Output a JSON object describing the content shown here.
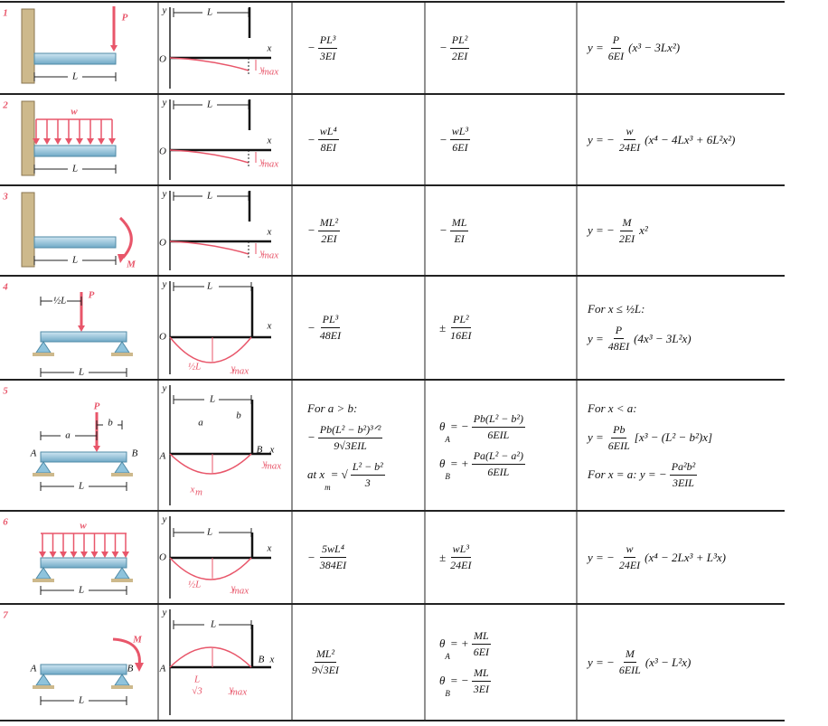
{
  "rows": [
    {
      "number": "1",
      "beam_labels": [
        "P",
        "L"
      ],
      "curve_labels": [
        "y",
        "L",
        "x",
        "O",
        "y",
        "max"
      ],
      "max_deflection": [
        [
          "−",
          {
            "n": "PL³",
            "d": "3EI"
          }
        ]
      ],
      "slope": [
        [
          "−",
          {
            "n": "PL²",
            "d": "2EI"
          }
        ]
      ],
      "elastic_curve": [
        [
          "y = ",
          {
            "n": "P",
            "d": "6EI"
          },
          "(x³ − 3Lx²)"
        ]
      ]
    },
    {
      "number": "2",
      "beam_labels": [
        "w",
        "L"
      ],
      "curve_labels": [
        "y",
        "L",
        "x",
        "O",
        "y",
        "max"
      ],
      "max_deflection": [
        [
          "−",
          {
            "n": "wL⁴",
            "d": "8EI"
          }
        ]
      ],
      "slope": [
        [
          "−",
          {
            "n": "wL³",
            "d": "6EI"
          }
        ]
      ],
      "elastic_curve": [
        [
          "y = −",
          {
            "n": "w",
            "d": "24EI"
          },
          "(x⁴ − 4Lx³ + 6L²x²)"
        ]
      ]
    },
    {
      "number": "3",
      "beam_labels": [
        "M",
        "L"
      ],
      "curve_labels": [
        "y",
        "L",
        "x",
        "O",
        "y",
        "max"
      ],
      "max_deflection": [
        [
          "−",
          {
            "n": "ML²",
            "d": "2EI"
          }
        ]
      ],
      "slope": [
        [
          "−",
          {
            "n": "ML",
            "d": "EI"
          }
        ]
      ],
      "elastic_curve": [
        [
          "y = −",
          {
            "n": "M",
            "d": "2EI"
          },
          "x²"
        ]
      ]
    },
    {
      "number": "4",
      "beam_labels": [
        "½L",
        "P",
        "L"
      ],
      "curve_labels": [
        "y",
        "L",
        "x",
        "O",
        "½L",
        "y",
        "max"
      ],
      "max_deflection": [
        [
          "−",
          {
            "n": "PL³",
            "d": "48EI"
          }
        ]
      ],
      "slope": [
        [
          "±",
          {
            "n": "PL²",
            "d": "16EI"
          }
        ]
      ],
      "elastic_curve": [
        [
          "For x ≤ ½L:"
        ],
        [
          "y = ",
          {
            "n": "P",
            "d": "48EI"
          },
          "(4x³ − 3L²x)"
        ]
      ]
    },
    {
      "number": "5",
      "beam_labels": [
        "P",
        "a",
        "b",
        "A",
        "B",
        "L"
      ],
      "curve_labels": [
        "y",
        "L",
        "a",
        "b",
        "B",
        "x",
        "A",
        "y",
        "max",
        "x",
        "m"
      ],
      "max_deflection": [
        [
          "For a > b:"
        ],
        [
          "−",
          {
            "n": "Pb(L² − b²)³ᐟ²",
            "d": "9√3EIL"
          }
        ],
        [
          "at x",
          {
            "sub": "m"
          },
          " = √",
          {
            "n": "L² − b²",
            "d": "3"
          }
        ]
      ],
      "slope": [
        [
          "θ",
          {
            "sub": "A"
          },
          " = −",
          {
            "n": "Pb(L² − b²)",
            "d": "6EIL"
          }
        ],
        [
          "θ",
          {
            "sub": "B"
          },
          " = +",
          {
            "n": "Pa(L² − a²)",
            "d": "6EIL"
          }
        ]
      ],
      "elastic_curve": [
        [
          "For x < a:"
        ],
        [
          "y = ",
          {
            "n": "Pb",
            "d": "6EIL"
          },
          "[x³ − (L² − b²)x]"
        ],
        [
          "For x = a:  y = −",
          {
            "n": "Pa²b²",
            "d": "3EIL"
          }
        ]
      ]
    },
    {
      "number": "6",
      "beam_labels": [
        "w",
        "L"
      ],
      "curve_labels": [
        "y",
        "L",
        "x",
        "O",
        "½L",
        "y",
        "max"
      ],
      "max_deflection": [
        [
          "−",
          {
            "n": "5wL⁴",
            "d": "384EI"
          }
        ]
      ],
      "slope": [
        [
          "±",
          {
            "n": "wL³",
            "d": "24EI"
          }
        ]
      ],
      "elastic_curve": [
        [
          "y = −",
          {
            "n": "w",
            "d": "24EI"
          },
          "(x⁴ − 2Lx³ + L³x)"
        ]
      ]
    },
    {
      "number": "7",
      "beam_labels": [
        "M",
        "A",
        "B",
        "L"
      ],
      "curve_labels": [
        "y",
        "L",
        "B",
        "x",
        "A",
        "L",
        "√3",
        "y",
        "max"
      ],
      "max_deflection": [
        [
          {
            "n": "ML²",
            "d": "9√3EI"
          }
        ]
      ],
      "slope": [
        [
          "θ",
          {
            "sub": "A"
          },
          " = +",
          {
            "n": "ML",
            "d": "6EI"
          }
        ],
        [
          "θ",
          {
            "sub": "B"
          },
          " = −",
          {
            "n": "ML",
            "d": "3EI"
          }
        ]
      ],
      "elastic_curve": [
        [
          "y = −",
          {
            "n": "M",
            "d": "6EIL"
          },
          "(x³ − L²x)"
        ]
      ]
    }
  ]
}
